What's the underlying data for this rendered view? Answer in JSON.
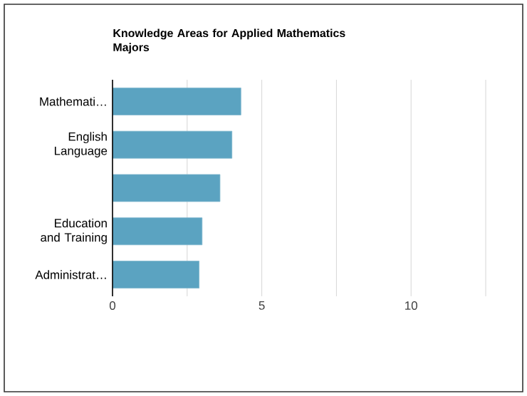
{
  "chart_data": {
    "type": "bar",
    "orientation": "horizontal",
    "title": "Knowledge Areas for Applied Mathematics Majors",
    "categories": [
      "Mathemati…",
      "English Language",
      null,
      "Education and Training",
      "Administrat…"
    ],
    "values": [
      4.3,
      4.0,
      3.6,
      3.0,
      2.9
    ],
    "color": "#5ba3c1",
    "xlim": [
      0,
      12.5
    ],
    "xticks": [
      0,
      {
        "value": 2.5,
        "label": null
      },
      5,
      {
        "value": 7.5,
        "label": null
      },
      10,
      {
        "value": 12.5,
        "label": null
      }
    ],
    "grid": "x"
  }
}
